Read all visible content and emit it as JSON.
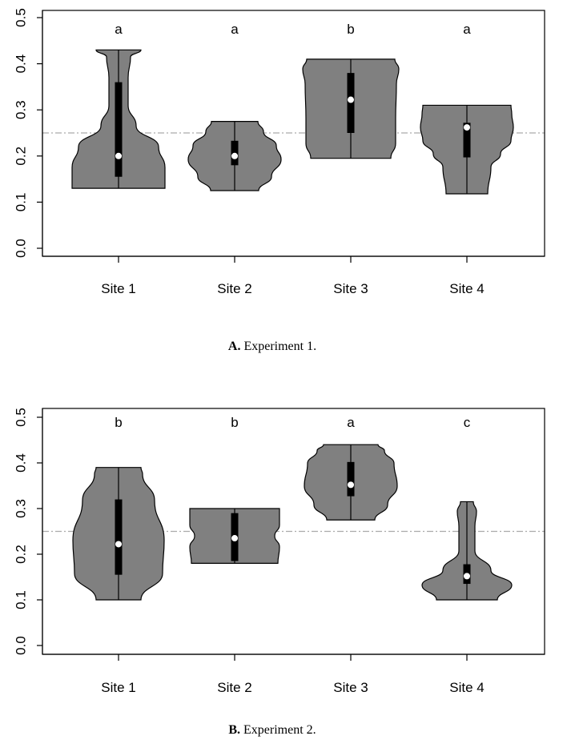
{
  "chart_data": [
    {
      "type": "violin",
      "caption_label": "A.",
      "caption_text": " Experiment 1.",
      "categories": [
        "Site 1",
        "Site 2",
        "Site 3",
        "Site 4"
      ],
      "letters": [
        "a",
        "a",
        "b",
        "a"
      ],
      "ylim": [
        0.0,
        0.5
      ],
      "yticks": [
        "0.0",
        "0.1",
        "0.2",
        "0.3",
        "0.4",
        "0.5"
      ],
      "reference_line": 0.25,
      "violins": [
        {
          "min": 0.13,
          "max": 0.43,
          "q1": 0.155,
          "q3": 0.36,
          "median": 0.2
        },
        {
          "min": 0.125,
          "max": 0.275,
          "q1": 0.18,
          "q3": 0.233,
          "median": 0.2
        },
        {
          "min": 0.195,
          "max": 0.41,
          "q1": 0.25,
          "q3": 0.38,
          "median": 0.322
        },
        {
          "min": 0.118,
          "max": 0.31,
          "q1": 0.197,
          "q3": 0.272,
          "median": 0.262
        }
      ]
    },
    {
      "type": "violin",
      "caption_label": "B.",
      "caption_text": " Experiment 2.",
      "categories": [
        "Site 1",
        "Site 2",
        "Site 3",
        "Site 4"
      ],
      "letters": [
        "b",
        "b",
        "a",
        "c"
      ],
      "ylim": [
        0.0,
        0.5
      ],
      "yticks": [
        "0.0",
        "0.1",
        "0.2",
        "0.3",
        "0.4",
        "0.5"
      ],
      "reference_line": 0.25,
      "violins": [
        {
          "min": 0.1,
          "max": 0.39,
          "q1": 0.155,
          "q3": 0.32,
          "median": 0.222
        },
        {
          "min": 0.18,
          "max": 0.3,
          "q1": 0.185,
          "q3": 0.29,
          "median": 0.235
        },
        {
          "min": 0.275,
          "max": 0.44,
          "q1": 0.327,
          "q3": 0.402,
          "median": 0.352
        },
        {
          "min": 0.1,
          "max": 0.315,
          "q1": 0.135,
          "q3": 0.178,
          "median": 0.152
        }
      ]
    }
  ]
}
